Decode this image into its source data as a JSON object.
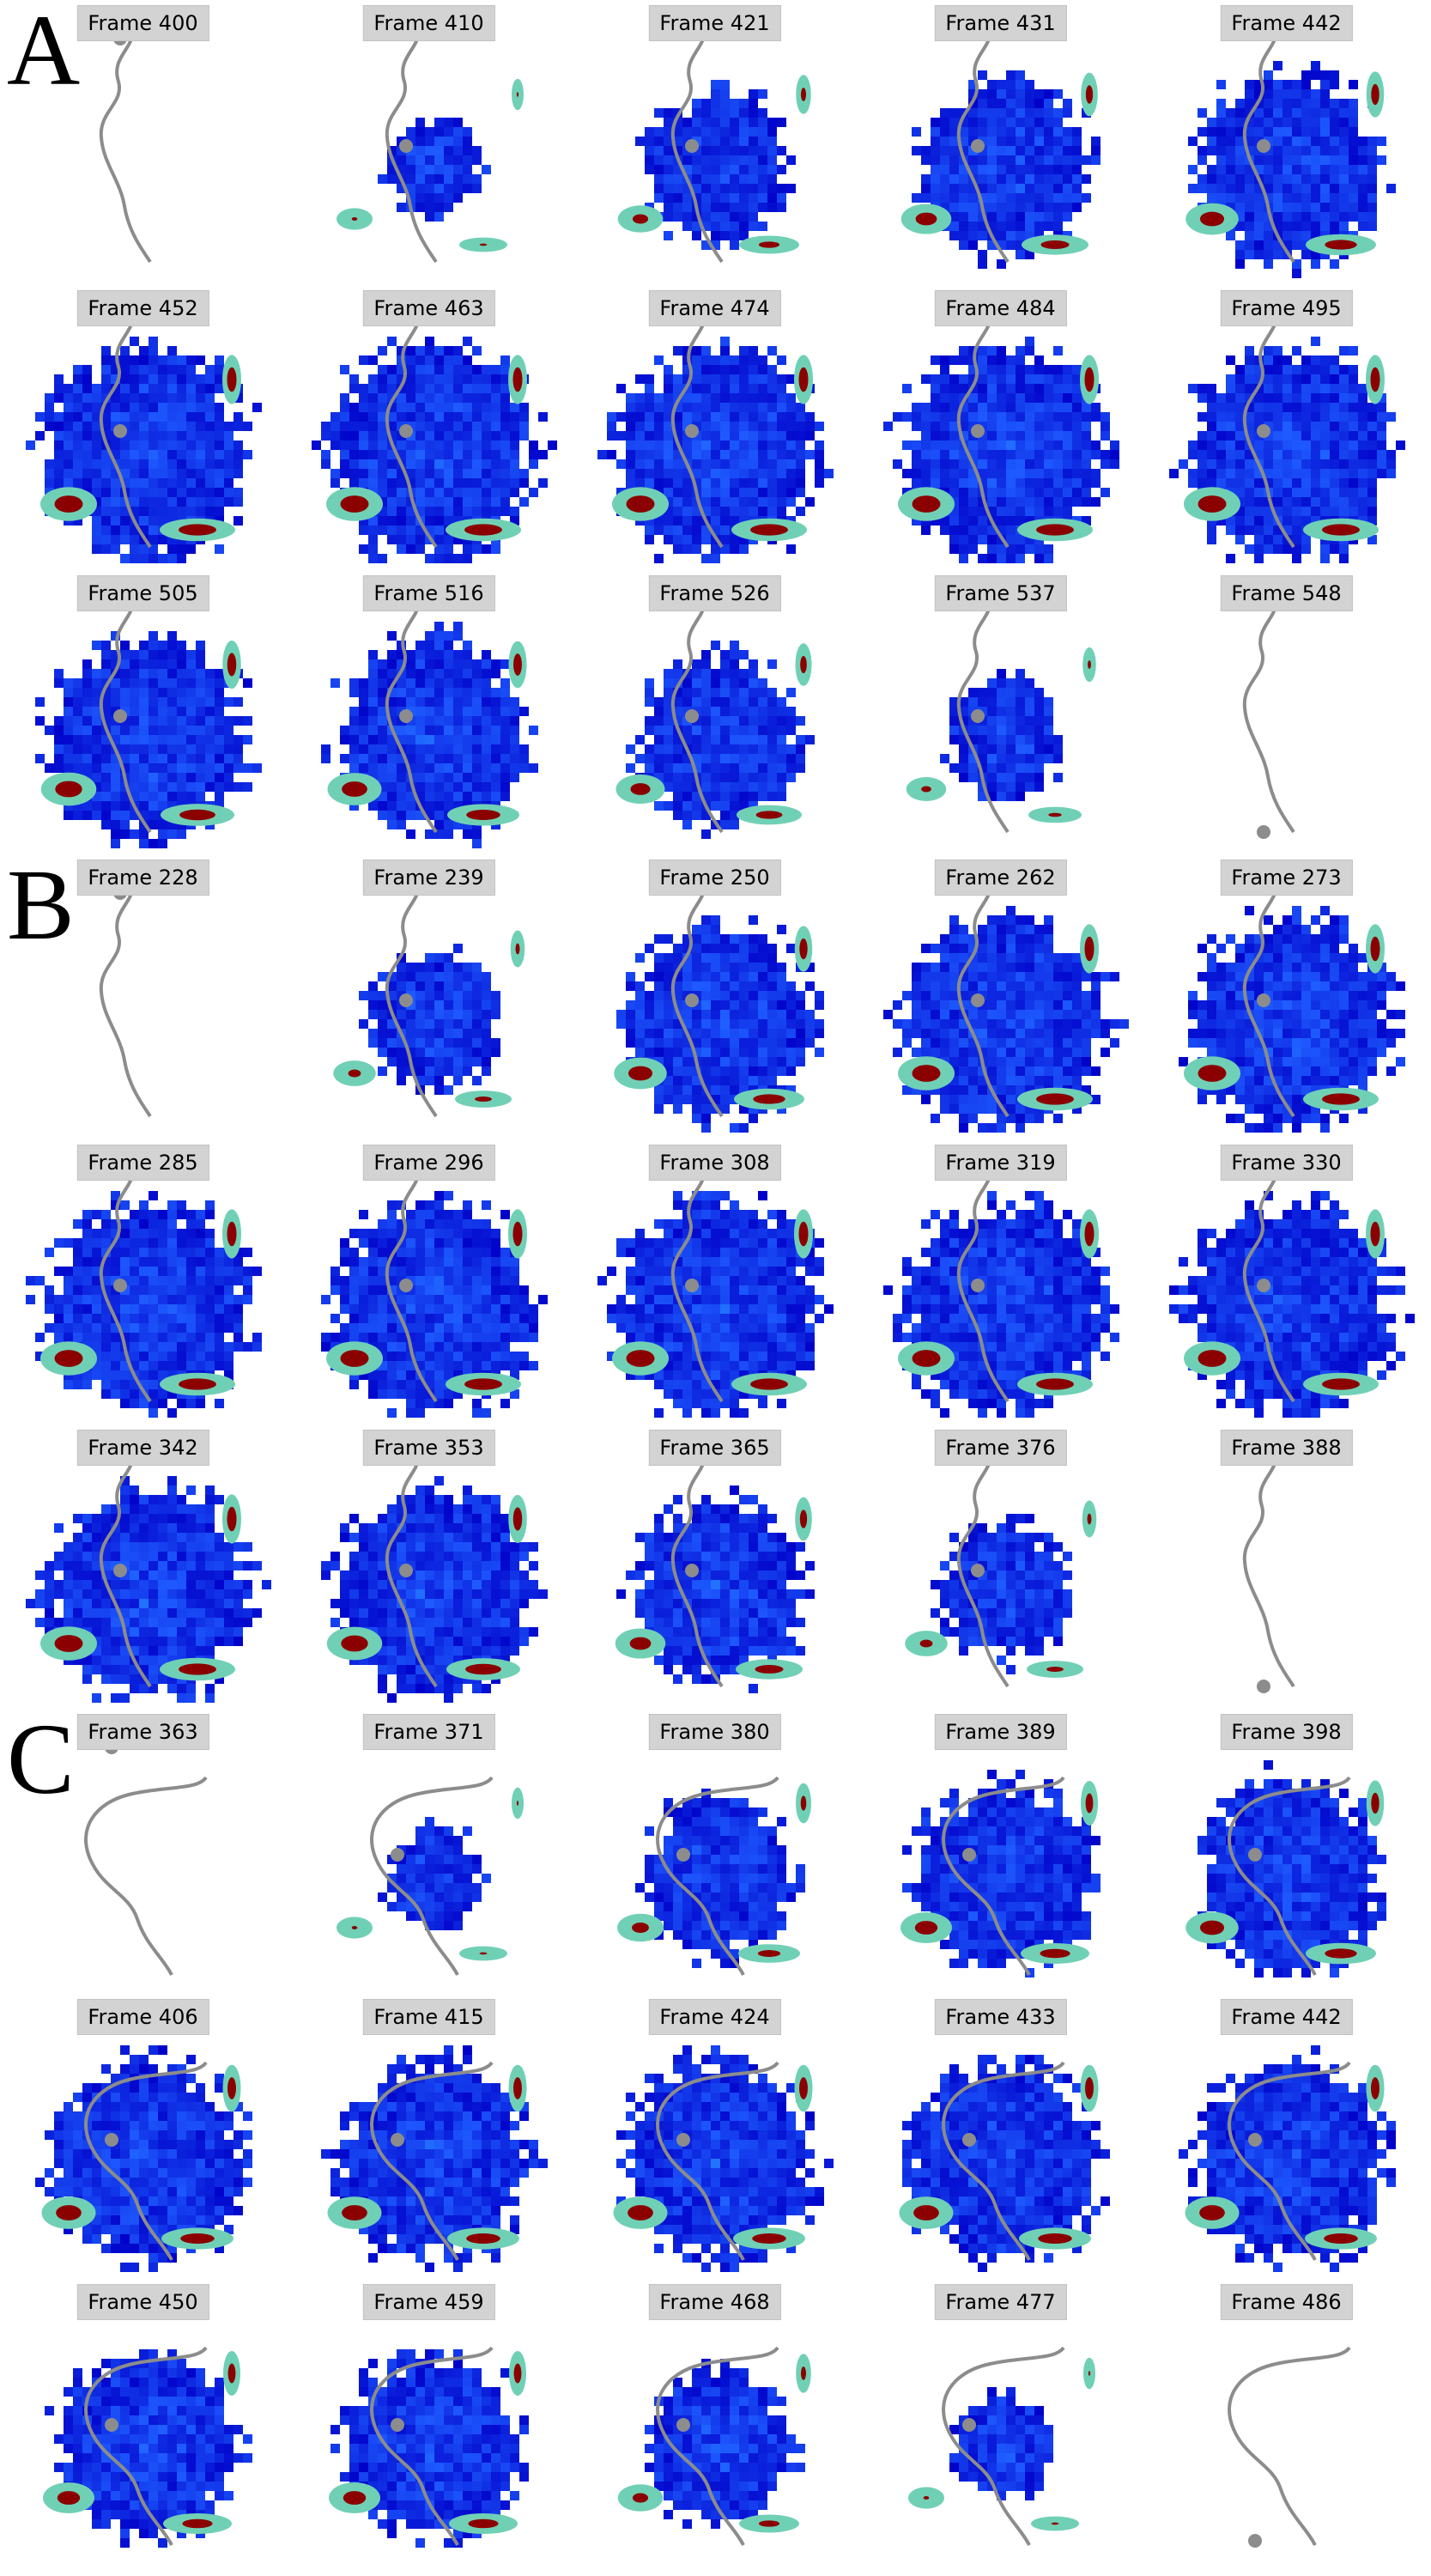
{
  "panels": [
    {
      "letter": "A",
      "frames": [
        {
          "label": "Frame 400",
          "level": 0.0
        },
        {
          "label": "Frame 410",
          "level": 0.2
        },
        {
          "label": "Frame 421",
          "level": 0.55
        },
        {
          "label": "Frame 431",
          "level": 0.75
        },
        {
          "label": "Frame 442",
          "level": 0.85
        },
        {
          "label": "Frame 452",
          "level": 1.0
        },
        {
          "label": "Frame 463",
          "level": 1.0
        },
        {
          "label": "Frame 474",
          "level": 1.0
        },
        {
          "label": "Frame 484",
          "level": 1.0
        },
        {
          "label": "Frame 495",
          "level": 1.0
        },
        {
          "label": "Frame 505",
          "level": 0.95
        },
        {
          "label": "Frame 516",
          "level": 0.9
        },
        {
          "label": "Frame 526",
          "level": 0.7
        },
        {
          "label": "Frame 537",
          "level": 0.35
        },
        {
          "label": "Frame 548",
          "level": 0.0
        }
      ]
    },
    {
      "letter": "B",
      "frames": [
        {
          "label": "Frame 228",
          "level": 0.0
        },
        {
          "label": "Frame 239",
          "level": 0.45
        },
        {
          "label": "Frame 250",
          "level": 0.85
        },
        {
          "label": "Frame 262",
          "level": 1.0
        },
        {
          "label": "Frame 273",
          "level": 1.0
        },
        {
          "label": "Frame 285",
          "level": 1.0
        },
        {
          "label": "Frame 296",
          "level": 1.0
        },
        {
          "label": "Frame 308",
          "level": 1.0
        },
        {
          "label": "Frame 319",
          "level": 1.0
        },
        {
          "label": "Frame 330",
          "level": 1.0
        },
        {
          "label": "Frame 342",
          "level": 1.0
        },
        {
          "label": "Frame 353",
          "level": 0.95
        },
        {
          "label": "Frame 365",
          "level": 0.75
        },
        {
          "label": "Frame 376",
          "level": 0.45
        },
        {
          "label": "Frame 388",
          "level": 0.0
        }
      ]
    },
    {
      "letter": "C",
      "frames": [
        {
          "label": "Frame 363",
          "level": 0.0
        },
        {
          "label": "Frame 371",
          "level": 0.2
        },
        {
          "label": "Frame 380",
          "level": 0.6
        },
        {
          "label": "Frame 389",
          "level": 0.8
        },
        {
          "label": "Frame 398",
          "level": 0.85
        },
        {
          "label": "Frame 406",
          "level": 0.9
        },
        {
          "label": "Frame 415",
          "level": 0.9
        },
        {
          "label": "Frame 424",
          "level": 0.9
        },
        {
          "label": "Frame 433",
          "level": 0.9
        },
        {
          "label": "Frame 442",
          "level": 0.9
        },
        {
          "label": "Frame 450",
          "level": 0.8
        },
        {
          "label": "Frame 459",
          "level": 0.8
        },
        {
          "label": "Frame 468",
          "level": 0.55
        },
        {
          "label": "Frame 477",
          "level": 0.2
        },
        {
          "label": "Frame 486",
          "level": 0.0
        }
      ]
    }
  ],
  "colors": {
    "label_background": "#d3d3d3",
    "trajectory": "#8c8c8c",
    "heat_low": "#0000c8",
    "heat_mid": "#1e5aff",
    "heat_cyan": "#30c8ff",
    "heat_yellow": "#f0e020",
    "heat_high": "#8b0000"
  }
}
